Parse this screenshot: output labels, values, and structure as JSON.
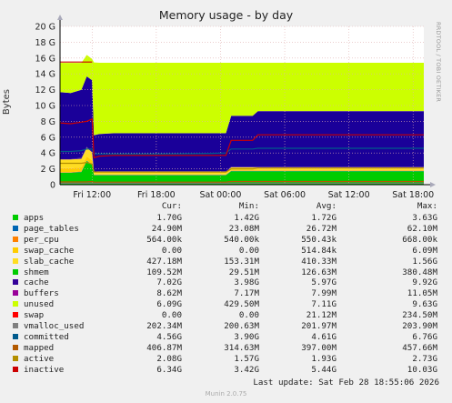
{
  "chart_data": {
    "type": "area",
    "title": "Memory usage - by day",
    "ylabel": "Bytes",
    "watermark": "RRDTOOL / TOBI OETIKER",
    "ylim": [
      0,
      20
    ],
    "y_unit": "G",
    "yticks": [
      "0",
      "2 G",
      "4 G",
      "6 G",
      "8 G",
      "10 G",
      "12 G",
      "14 G",
      "16 G",
      "18 G",
      "20 G"
    ],
    "xticks": [
      "Fri 12:00",
      "Fri 18:00",
      "Sat 00:00",
      "Sat 06:00",
      "Sat 12:00",
      "Sat 18:00"
    ],
    "x": [
      "Fri 09:00",
      "Fri 10:00",
      "Fri 11:00",
      "Fri 11:30",
      "Fri 12:00",
      "Fri 12:10",
      "Fri 12:40",
      "Fri 14:00",
      "Fri 18:00",
      "Fri 23:00",
      "Sat 00:30",
      "Sat 01:00",
      "Sat 03:00",
      "Sat 03:30",
      "Sat 06:00",
      "Sat 09:00",
      "Sat 12:00",
      "Sat 15:00",
      "Sat 18:00",
      "Sat 19:00"
    ],
    "series": [
      {
        "name": "apps",
        "color": "#00cc00",
        "values": [
          1.5,
          1.5,
          1.6,
          3.0,
          2.5,
          1.2,
          1.2,
          1.2,
          1.2,
          1.2,
          1.2,
          1.7,
          1.7,
          1.7,
          1.7,
          1.7,
          1.7,
          1.7,
          1.7,
          1.7
        ]
      },
      {
        "name": "page_tables",
        "color": "#0066b3",
        "values": [
          0.03,
          0.03,
          0.03,
          0.03,
          0.03,
          0.03,
          0.03,
          0.03,
          0.03,
          0.03,
          0.03,
          0.03,
          0.03,
          0.03,
          0.03,
          0.03,
          0.03,
          0.03,
          0.03,
          0.03
        ]
      },
      {
        "name": "per_cpu",
        "color": "#ff8000",
        "values": [
          0.05,
          0.05,
          0.05,
          0.05,
          0.05,
          0.05,
          0.05,
          0.05,
          0.05,
          0.05,
          0.05,
          0.05,
          0.05,
          0.05,
          0.05,
          0.05,
          0.05,
          0.05,
          0.05,
          0.05
        ]
      },
      {
        "name": "swap_cache",
        "color": "#ffcc00",
        "values": [
          0.5,
          0.5,
          0.5,
          0.5,
          0.5,
          0.01,
          0.01,
          0.01,
          0.01,
          0.01,
          0.01,
          0.01,
          0.01,
          0.01,
          0.01,
          0.01,
          0.01,
          0.01,
          0.01,
          0.01
        ]
      },
      {
        "name": "slab_cache",
        "color": "#ffdd22",
        "values": [
          1.1,
          1.1,
          1.1,
          1.1,
          1.0,
          0.35,
          0.3,
          0.3,
          0.3,
          0.3,
          0.3,
          0.4,
          0.4,
          0.4,
          0.4,
          0.4,
          0.4,
          0.4,
          0.4,
          0.4
        ]
      },
      {
        "name": "shmem",
        "color": "#330099",
        "values": [
          0.1,
          0.1,
          0.1,
          0.1,
          0.1,
          0.1,
          0.1,
          0.1,
          0.1,
          0.1,
          0.1,
          0.1,
          0.1,
          0.1,
          0.1,
          0.1,
          0.1,
          0.1,
          0.1,
          0.1
        ]
      },
      {
        "name": "cache",
        "color": "#1a0099",
        "values": [
          8.4,
          8.3,
          8.6,
          8.9,
          9.0,
          4.5,
          4.7,
          4.8,
          4.8,
          4.8,
          4.8,
          6.4,
          6.4,
          7.0,
          7.0,
          7.0,
          7.0,
          7.0,
          7.0,
          7.0
        ]
      },
      {
        "name": "buffers",
        "color": "#990099",
        "values": [
          0.01,
          0.01,
          0.01,
          0.01,
          0.01,
          0.01,
          0.01,
          0.01,
          0.01,
          0.01,
          0.01,
          0.01,
          0.01,
          0.01,
          0.01,
          0.01,
          0.01,
          0.01,
          0.01,
          0.01
        ]
      },
      {
        "name": "unused",
        "color": "#ccff00",
        "values": [
          3.7,
          3.8,
          3.4,
          2.7,
          2.7,
          9.2,
          9.0,
          8.9,
          8.9,
          8.9,
          8.9,
          6.7,
          6.7,
          6.1,
          6.1,
          6.1,
          6.1,
          6.1,
          6.1,
          6.1
        ]
      },
      {
        "name": "swap",
        "color": "#ff0000",
        "values": [
          0.0,
          0.0,
          0.0,
          0.0,
          0.0,
          0.0,
          0.0,
          0.0,
          0.0,
          0.0,
          0.0,
          0.0,
          0.0,
          0.0,
          0.0,
          0.0,
          0.0,
          0.0,
          0.0,
          0.0
        ]
      }
    ],
    "lines": [
      {
        "name": "vmalloc_used",
        "color": "#808080",
        "values": [
          0.2,
          0.2,
          0.2,
          0.2,
          0.2,
          0.2,
          0.2,
          0.2,
          0.2,
          0.2,
          0.2,
          0.2,
          0.2,
          0.2,
          0.2,
          0.2,
          0.2,
          0.2,
          0.2,
          0.2
        ]
      },
      {
        "name": "committed",
        "color": "#005a8c",
        "values": [
          4.2,
          4.2,
          4.3,
          4.5,
          4.5,
          3.9,
          3.9,
          3.9,
          3.9,
          3.95,
          4.0,
          4.5,
          4.5,
          4.6,
          4.6,
          4.6,
          4.6,
          4.6,
          4.6,
          4.6
        ]
      },
      {
        "name": "mapped",
        "color": "#b35a00",
        "values": [
          0.35,
          0.35,
          0.35,
          0.35,
          0.4,
          0.32,
          0.32,
          0.32,
          0.32,
          0.32,
          0.32,
          0.4,
          0.4,
          0.4,
          0.4,
          0.4,
          0.4,
          0.4,
          0.4,
          0.4
        ]
      },
      {
        "name": "active",
        "color": "#b38f00",
        "values": [
          2.7,
          2.7,
          2.7,
          2.8,
          2.6,
          1.6,
          1.6,
          1.6,
          1.6,
          1.6,
          1.6,
          2.0,
          2.0,
          2.1,
          2.1,
          2.1,
          2.1,
          2.1,
          2.1,
          2.1
        ]
      },
      {
        "name": "inactive",
        "color": "#cc0000",
        "values": [
          7.8,
          7.7,
          7.9,
          8.0,
          8.3,
          3.4,
          3.6,
          3.7,
          3.7,
          3.7,
          3.7,
          5.6,
          5.6,
          6.3,
          6.3,
          6.3,
          6.3,
          6.3,
          6.3,
          6.3
        ]
      },
      {
        "name": "swap_total",
        "color": "#cc0000",
        "values": [
          15.5,
          15.5,
          15.5,
          15.5,
          15.5,
          null,
          null,
          null,
          null,
          null,
          null,
          null,
          null,
          null,
          null,
          null,
          null,
          null,
          null,
          null
        ]
      }
    ],
    "total_top": 15.5,
    "legend": {
      "headers": [
        "Cur:",
        "Min:",
        "Avg:",
        "Max:"
      ],
      "rows": [
        {
          "name": "apps",
          "color": "#00cc00",
          "cur": "1.70G",
          "min": "1.42G",
          "avg": "1.72G",
          "max": "3.63G"
        },
        {
          "name": "page_tables",
          "color": "#0066b3",
          "cur": "24.90M",
          "min": "23.08M",
          "avg": "26.72M",
          "max": "62.10M"
        },
        {
          "name": "per_cpu",
          "color": "#ff8000",
          "cur": "564.00k",
          "min": "540.00k",
          "avg": "550.43k",
          "max": "668.00k"
        },
        {
          "name": "swap_cache",
          "color": "#ffcc00",
          "cur": "0.00",
          "min": "0.00",
          "avg": "514.84k",
          "max": "6.09M"
        },
        {
          "name": "slab_cache",
          "color": "#ffdd22",
          "cur": "427.18M",
          "min": "153.31M",
          "avg": "410.33M",
          "max": "1.56G"
        },
        {
          "name": "shmem",
          "color": "#00cc00",
          "cur": "109.52M",
          "min": "29.51M",
          "avg": "126.63M",
          "max": "380.48M"
        },
        {
          "name": "cache",
          "color": "#330099",
          "cur": "7.02G",
          "min": "3.98G",
          "avg": "5.97G",
          "max": "9.92G"
        },
        {
          "name": "buffers",
          "color": "#990099",
          "cur": "8.62M",
          "min": "7.17M",
          "avg": "7.99M",
          "max": "11.05M"
        },
        {
          "name": "unused",
          "color": "#ccff00",
          "cur": "6.09G",
          "min": "429.50M",
          "avg": "7.11G",
          "max": "9.63G"
        },
        {
          "name": "swap",
          "color": "#ff0000",
          "cur": "0.00",
          "min": "0.00",
          "avg": "21.12M",
          "max": "234.50M"
        },
        {
          "name": "vmalloc_used",
          "color": "#808080",
          "cur": "202.34M",
          "min": "200.63M",
          "avg": "201.97M",
          "max": "203.90M"
        },
        {
          "name": "committed",
          "color": "#005a8c",
          "cur": "4.56G",
          "min": "3.90G",
          "avg": "4.61G",
          "max": "6.76G"
        },
        {
          "name": "mapped",
          "color": "#b35a00",
          "cur": "406.87M",
          "min": "314.63M",
          "avg": "397.00M",
          "max": "457.66M"
        },
        {
          "name": "active",
          "color": "#b38f00",
          "cur": "2.08G",
          "min": "1.57G",
          "avg": "1.93G",
          "max": "2.73G"
        },
        {
          "name": "inactive",
          "color": "#cc0000",
          "cur": "6.34G",
          "min": "3.42G",
          "avg": "5.44G",
          "max": "10.03G"
        }
      ]
    }
  },
  "footer": {
    "last_update": "Last update: Sat Feb 28 18:55:06 2026",
    "munin_version": "Munin 2.0.75"
  }
}
